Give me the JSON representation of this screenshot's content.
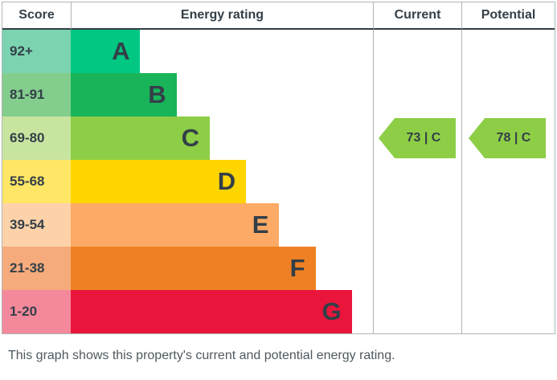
{
  "header": {
    "score": "Score",
    "energy_rating": "Energy rating",
    "current": "Current",
    "potential": "Potential"
  },
  "chart_data": {
    "type": "bar",
    "title": "Energy rating",
    "bands": [
      {
        "range": "92+",
        "letter": "A",
        "width_pct": 23,
        "color": "#00c781",
        "tint": "#7bd3af"
      },
      {
        "range": "81-91",
        "letter": "B",
        "width_pct": 35,
        "color": "#19b459",
        "tint": "#83cd8d"
      },
      {
        "range": "69-80",
        "letter": "C",
        "width_pct": 46,
        "color": "#8dce46",
        "tint": "#c8e5a0"
      },
      {
        "range": "55-68",
        "letter": "D",
        "width_pct": 58,
        "color": "#ffd500",
        "tint": "#ffe666"
      },
      {
        "range": "39-54",
        "letter": "E",
        "width_pct": 69,
        "color": "#fcaa65",
        "tint": "#fdd2a9"
      },
      {
        "range": "21-38",
        "letter": "F",
        "width_pct": 81,
        "color": "#ef8023",
        "tint": "#f5ab7c"
      },
      {
        "range": "1-20",
        "letter": "G",
        "width_pct": 93,
        "color": "#e9153b",
        "tint": "#f4899c"
      }
    ],
    "current": {
      "value": 73,
      "band": "C",
      "label": "73 | C",
      "arrow_color": "#8dce46"
    },
    "potential": {
      "value": 78,
      "band": "C",
      "label": "78 | C",
      "arrow_color": "#8dce46"
    }
  },
  "footer": {
    "caption": "This graph shows this property's current and potential energy rating."
  }
}
